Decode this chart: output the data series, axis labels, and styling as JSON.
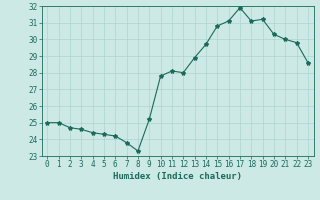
{
  "x": [
    0,
    1,
    2,
    3,
    4,
    5,
    6,
    7,
    8,
    9,
    10,
    11,
    12,
    13,
    14,
    15,
    16,
    17,
    18,
    19,
    20,
    21,
    22,
    23
  ],
  "y": [
    25.0,
    25.0,
    24.7,
    24.6,
    24.4,
    24.3,
    24.2,
    23.8,
    23.3,
    25.2,
    27.8,
    28.1,
    28.0,
    28.9,
    29.7,
    30.8,
    31.1,
    31.9,
    31.1,
    31.2,
    30.3,
    30.0,
    29.8,
    28.6
  ],
  "line_color": "#1a6b5a",
  "marker": "*",
  "marker_size": 3,
  "background_color": "#cce9e6",
  "grid_color": "#aed4d0",
  "xlabel": "Humidex (Indice chaleur)",
  "xlim": [
    -0.5,
    23.5
  ],
  "ylim": [
    23,
    32
  ],
  "yticks": [
    23,
    24,
    25,
    26,
    27,
    28,
    29,
    30,
    31,
    32
  ],
  "xticks": [
    0,
    1,
    2,
    3,
    4,
    5,
    6,
    7,
    8,
    9,
    10,
    11,
    12,
    13,
    14,
    15,
    16,
    17,
    18,
    19,
    20,
    21,
    22,
    23
  ],
  "tick_color": "#1a6b5a",
  "label_fontsize": 6.5,
  "tick_fontsize": 5.5
}
